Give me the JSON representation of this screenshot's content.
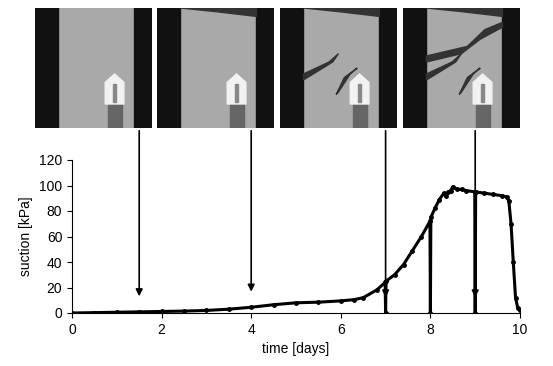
{
  "chart_data": {
    "type": "line",
    "x_label": "time [days]",
    "y_label": "suction [kPa]",
    "x": [
      0,
      0.5,
      1,
      1.5,
      2,
      2.5,
      3,
      3.5,
      4,
      4.5,
      5,
      5.5,
      6,
      6.3,
      6.5,
      6.8,
      6.99,
      7.0,
      7.01,
      7.2,
      7.4,
      7.6,
      7.8,
      7.99,
      8.0,
      8.01,
      8.1,
      8.2,
      8.3,
      8.35,
      8.4,
      8.45,
      8.5,
      8.6,
      8.7,
      8.8,
      8.99,
      9.0,
      9.01,
      9.2,
      9.4,
      9.6,
      9.7,
      9.75,
      9.8,
      9.85,
      9.9,
      9.95,
      10.0
    ],
    "values": [
      0,
      0.3,
      0.6,
      0.9,
      1.2,
      1.5,
      2,
      3,
      4.5,
      6.5,
      8,
      8.5,
      9.5,
      10.5,
      12,
      18,
      24,
      0,
      25,
      30,
      38,
      49,
      60,
      72,
      0,
      75,
      82,
      89,
      94,
      92,
      95,
      96,
      99,
      97,
      97,
      96,
      95,
      0,
      95,
      94,
      93,
      92,
      91,
      88,
      70,
      40,
      12,
      4,
      2
    ],
    "color": "#000000",
    "marker": "o",
    "xlim": [
      0,
      10
    ],
    "xticks": [
      0,
      2,
      4,
      6,
      8,
      10
    ],
    "ylim": [
      0,
      120
    ],
    "yticks": [
      0,
      20,
      40,
      60,
      80,
      100,
      120
    ],
    "grid": false,
    "snapshot_times": [
      1.5,
      4,
      7,
      9
    ]
  }
}
